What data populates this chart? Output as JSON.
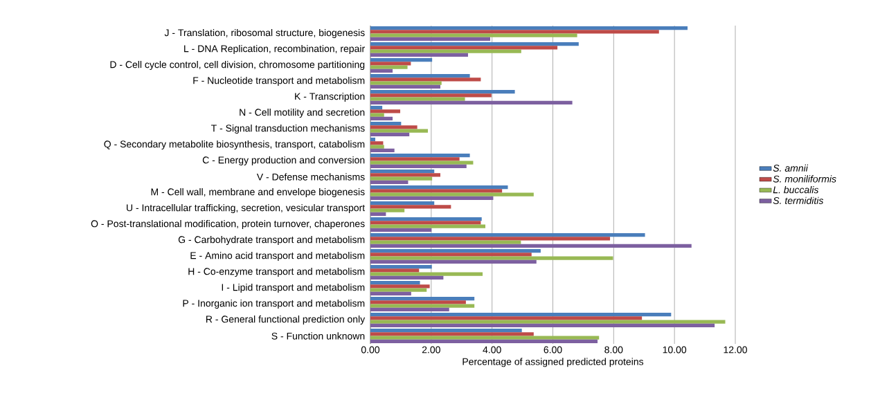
{
  "chart_data": {
    "type": "bar",
    "orientation": "horizontal",
    "xlabel": "Percentage of assigned predicted proteins",
    "categories": [
      "J - Translation, ribosomal structure, biogenesis",
      "L - DNA Replication, recombination, repair",
      "D - Cell cycle control, cell division, chromosome partitioning",
      "F - Nucleotide transport and metabolism",
      "K - Transcription",
      "N - Cell motility and secretion",
      "T - Signal transduction mechanisms",
      "Q - Secondary metabolite biosynthesis, transport, catabolism",
      "C - Energy production and conversion",
      "V - Defense mechanisms",
      "M - Cell wall, membrane and envelope biogenesis",
      "U - Intracellular trafficking, secretion, vesicular transport",
      "O - Post-translational modification, protein turnover, chaperones",
      "G - Carbohydrate transport and metabolism",
      "E - Amino acid transport and metabolism",
      "H - Co-enzyme transport and metabolism",
      "I - Lipid transport and metabolism",
      "P - Inorganic ion transport and metabolism",
      "R  - General functional prediction only",
      "S - Function unknown"
    ],
    "series": [
      {
        "name": "S. amnii",
        "color": "#4a7ebb",
        "values": [
          10.43,
          6.85,
          2.03,
          3.27,
          4.75,
          0.39,
          1.01,
          0.16,
          3.27,
          2.1,
          4.52,
          2.1,
          3.66,
          9.03,
          5.6,
          2.02,
          1.63,
          3.42,
          9.89,
          4.98
        ]
      },
      {
        "name": "S. moniliformis",
        "color": "#be4b48",
        "values": [
          9.49,
          6.15,
          1.33,
          3.63,
          3.98,
          0.98,
          1.54,
          0.42,
          2.93,
          2.3,
          4.33,
          2.65,
          3.63,
          7.88,
          5.3,
          1.6,
          1.95,
          3.14,
          8.93,
          5.37
        ]
      },
      {
        "name": "L. buccalis",
        "color": "#98b954",
        "values": [
          6.8,
          4.96,
          1.22,
          2.34,
          3.11,
          0.45,
          1.89,
          0.45,
          3.38,
          2.03,
          5.37,
          1.12,
          3.78,
          4.95,
          7.98,
          3.69,
          1.85,
          3.42,
          11.67,
          7.52
        ]
      },
      {
        "name": "S. termiditis",
        "color": "#7d60a0",
        "values": [
          3.94,
          3.21,
          0.73,
          2.3,
          6.64,
          0.73,
          1.28,
          0.79,
          3.16,
          1.24,
          4.04,
          0.51,
          2.01,
          10.56,
          5.46,
          2.4,
          1.34,
          2.59,
          11.32,
          7.47
        ]
      }
    ],
    "xlim": [
      0,
      12
    ],
    "xticks": [
      {
        "value": 0,
        "label": "0.00"
      },
      {
        "value": 2,
        "label": "2.00"
      },
      {
        "value": 4,
        "label": "4.00"
      },
      {
        "value": 6,
        "label": "6.00"
      },
      {
        "value": 8,
        "label": "8.00"
      },
      {
        "value": 10,
        "label": "10.00"
      },
      {
        "value": 12,
        "label": "12.00"
      }
    ],
    "grid": "x",
    "legend": "right"
  }
}
